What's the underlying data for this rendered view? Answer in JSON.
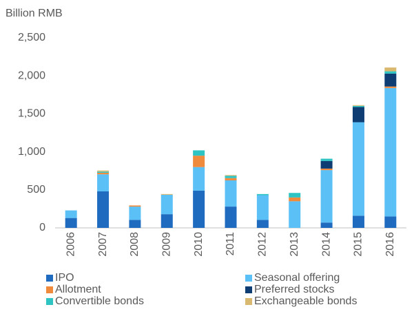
{
  "chart_data": {
    "type": "stacked_bar",
    "y_label": "Billion RMB",
    "categories": [
      "2006",
      "2007",
      "2008",
      "2009",
      "2010",
      "2011",
      "2012",
      "2013",
      "2014",
      "2015",
      "2016"
    ],
    "series": [
      {
        "name": "IPO",
        "color": "#1f6bbf",
        "values": [
          130,
          480,
          105,
          180,
          490,
          280,
          105,
          0,
          70,
          160,
          150
        ]
      },
      {
        "name": "Seasonal offering",
        "color": "#5bc0f5",
        "values": [
          100,
          225,
          175,
          255,
          310,
          345,
          325,
          350,
          690,
          1230,
          1690
        ]
      },
      {
        "name": "Allotment",
        "color": "#f08a3c",
        "values": [
          0,
          20,
          15,
          0,
          150,
          30,
          0,
          50,
          20,
          0,
          20
        ]
      },
      {
        "name": "Preferred stocks",
        "color": "#0d3d73",
        "values": [
          0,
          0,
          0,
          0,
          0,
          0,
          0,
          0,
          100,
          200,
          170
        ]
      },
      {
        "name": "Convertible bonds",
        "color": "#2ec4c4",
        "values": [
          0,
          15,
          0,
          0,
          70,
          30,
          15,
          60,
          30,
          15,
          30
        ]
      },
      {
        "name": "Exchangeable bonds",
        "color": "#d9b870",
        "values": [
          0,
          15,
          0,
          10,
          0,
          10,
          0,
          0,
          0,
          10,
          50
        ]
      }
    ],
    "ylim": [
      0,
      2500
    ],
    "yticks": [
      0,
      {
        "value": 500,
        "label": "500"
      },
      {
        "value": 1000,
        "label": "1,000"
      },
      {
        "value": 1500,
        "label": "1,500"
      },
      {
        "value": 2000,
        "label": "2,000"
      },
      {
        "value": 2500,
        "label": "2,500"
      }
    ],
    "legend": "bottom"
  }
}
